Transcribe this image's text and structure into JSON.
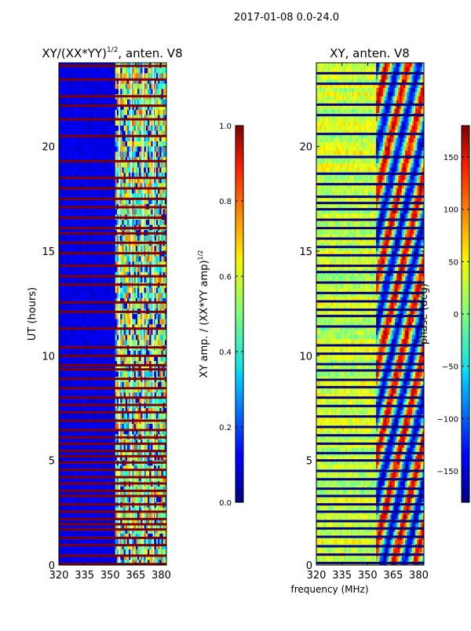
{
  "figure": {
    "suptitle": "2017-01-08 0.0-24.0",
    "xlabel": "frequency (MHz)"
  },
  "chart_data": [
    {
      "type": "heatmap",
      "title_main": "XY/(XX*YY)",
      "title_sup": "1/2",
      "title_tail": ", anten. V8",
      "xlabel": "",
      "ylabel": "UT (hours)",
      "xlim": [
        320,
        383
      ],
      "ylim": [
        0,
        24
      ],
      "xticks": [
        320,
        335,
        350,
        365,
        380
      ],
      "yticks": [
        0,
        5,
        10,
        15,
        20
      ],
      "colorbar": {
        "label_main": "XY amp. / (XX*YY amp)",
        "label_sup": "1/2",
        "range": [
          0.0,
          1.0
        ],
        "ticks": [
          "0.0",
          "0.2",
          "0.4",
          "0.6",
          "0.8",
          "1.0"
        ]
      },
      "flagged_hours": [
        0.05,
        0.45,
        0.95,
        1.3,
        1.7,
        1.95,
        2.2,
        2.55,
        2.9,
        3.3,
        3.55,
        3.9,
        4.2,
        4.55,
        4.9,
        5.2,
        5.45,
        5.8,
        6.1,
        6.45,
        6.9,
        7.3,
        7.65,
        8.0,
        8.45,
        8.9,
        9.35,
        9.55,
        10.0,
        10.4,
        11.3,
        12.1,
        12.55,
        13.4,
        13.8,
        14.3,
        14.9,
        15.4,
        15.85,
        16.1,
        16.6,
        17.1,
        17.5,
        18.0,
        18.5,
        19.3,
        20.5,
        21.3,
        21.95,
        22.4,
        23.2,
        23.85
      ],
      "summary": "Channels 320-352 MHz near 0 amplitude; 352-383 MHz values 0.2-0.8; flagged time rows at max (1.0)."
    },
    {
      "type": "heatmap",
      "title": "XY, anten. V8",
      "xlabel": "",
      "ylabel": "",
      "xlim": [
        320,
        383
      ],
      "ylim": [
        0,
        24
      ],
      "xticks": [
        320,
        335,
        350,
        365,
        380
      ],
      "yticks": [
        0,
        5,
        10,
        15,
        20
      ],
      "colorbar": {
        "label": "phase (deg)",
        "range": [
          -180,
          180
        ],
        "ticks": [
          "−150",
          "−100",
          "−50",
          "0",
          "50",
          "100",
          "150"
        ]
      },
      "flagged_hours": [
        0.1,
        0.5,
        0.9,
        1.35,
        1.75,
        2.1,
        2.55,
        2.9,
        3.3,
        3.65,
        4.1,
        4.5,
        5.0,
        5.35,
        5.8,
        6.2,
        6.6,
        7.1,
        7.6,
        8.0,
        8.5,
        8.85,
        9.3,
        9.6,
        10.1,
        10.5,
        11.4,
        11.9,
        12.2,
        12.6,
        13.0,
        13.5,
        14.0,
        14.3,
        14.8,
        15.2,
        15.6,
        16.1,
        16.5,
        17.0,
        17.3,
        17.6,
        18.2,
        18.7,
        19.5,
        20.6,
        21.5,
        22.0,
        23.0,
        23.5
      ],
      "summary": "Phase mostly near 0 to +60 deg at low frequencies, large swings above 355 MHz; flagged time rows at -180 deg."
    }
  ]
}
